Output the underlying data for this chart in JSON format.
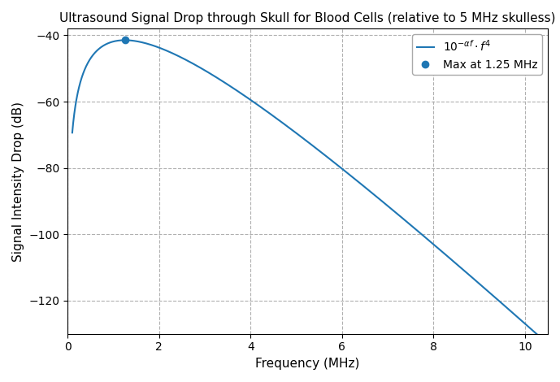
{
  "title": "Ultrasound Signal Drop through Skull for Blood Cells (relative to 5 MHz skulless)",
  "xlabel": "Frequency (MHz)",
  "ylabel": "Signal Intensity Drop (dB)",
  "line_color": "#1f77b4",
  "marker_color": "#1f77b4",
  "max_freq": 1.25,
  "freq_start": 0.1,
  "freq_end": 10.3,
  "ylim": [
    -130,
    -38
  ],
  "xlim": [
    0.0,
    10.5
  ],
  "legend_line": "$10^{-\\alpha f}\\cdot f^4$",
  "legend_dot": "Max at 1.25 MHz",
  "grid_color": "#b0b0b0",
  "grid_style": "--",
  "ref_freq": 5.0
}
